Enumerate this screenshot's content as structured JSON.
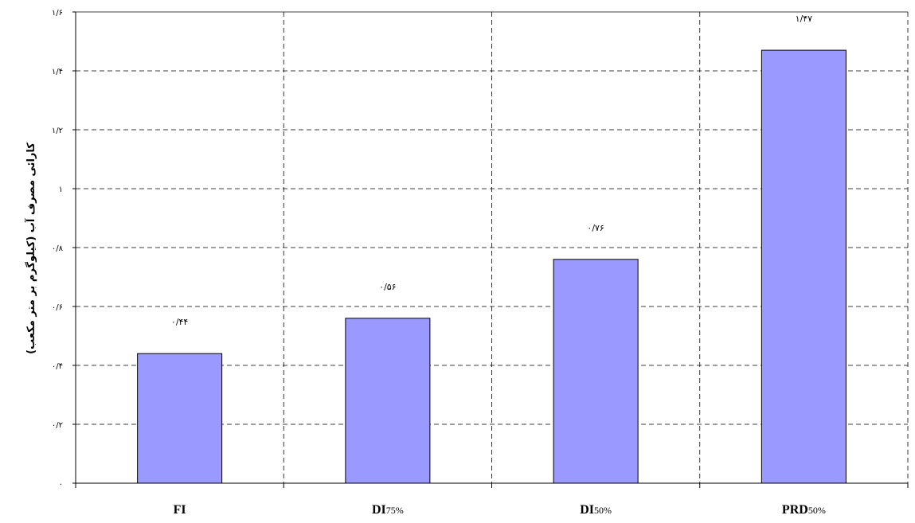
{
  "chart_data": {
    "type": "bar",
    "categories": [
      {
        "main": "FI",
        "sub": ""
      },
      {
        "main": "DI",
        "sub": "75%"
      },
      {
        "main": "DI",
        "sub": "50%"
      },
      {
        "main": "PRD",
        "sub": "50%"
      }
    ],
    "values": [
      0.44,
      0.56,
      0.76,
      1.47
    ],
    "data_labels": [
      "۰/۴۴",
      "۰/۵۶",
      "۰/۷۶",
      "۱/۴۷"
    ],
    "ylabel": "کارائی مصرف آب (کیلوگرم بر متر مکعب)",
    "ylim": [
      0,
      1.6
    ],
    "yticks": [
      0,
      0.2,
      0.4,
      0.6,
      0.8,
      1.0,
      1.2,
      1.4,
      1.6
    ],
    "ytick_labels": [
      "۰",
      "۰/۲",
      "۰/۴",
      "۰/۶",
      "۰/۸",
      "۱",
      "۱/۲",
      "۱/۴",
      "۱/۶"
    ],
    "grid": true,
    "grid_style": "dashed",
    "bar_color": "#9999ff",
    "bar_edge_color": "#000000"
  }
}
